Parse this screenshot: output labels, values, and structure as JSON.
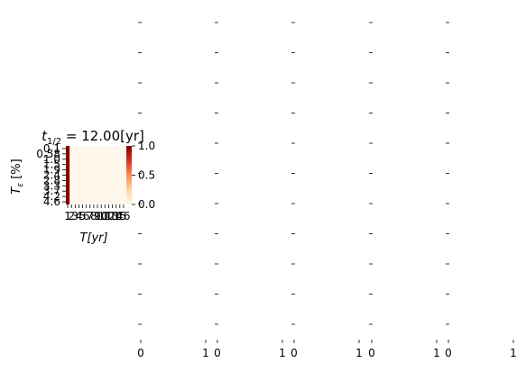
{
  "chart_data": [
    {
      "type": "heatmap",
      "title_symbol": "t",
      "title_subscript": "1/2",
      "title_rest": " = 12.00[yr]",
      "xlabel": "T[yr]",
      "ylabel_symbol": "T",
      "ylabel_subscript": "ε",
      "ylabel_rest": " [%]",
      "x_tick_labels": [
        "1",
        "2",
        "3",
        "4",
        "5",
        "6",
        "7",
        "8",
        "9",
        "10",
        "11",
        "12",
        "13",
        "14",
        "15",
        "16"
      ],
      "y_tick_labels": [
        "0.1",
        "0.58",
        "1.0",
        "1.5",
        "1.9",
        "2.4",
        "2.8",
        "3.3",
        "3.7",
        "4.2",
        "4.6"
      ],
      "grid": false,
      "colormap": "OrRd",
      "colorbar": {
        "ticks": [
          "0.0",
          "0.5",
          "1.0"
        ],
        "range": [
          0,
          1
        ]
      },
      "column_values": [
        1,
        0,
        0,
        0,
        0,
        0,
        0,
        0,
        0,
        0,
        0,
        0,
        0,
        0,
        0,
        0
      ],
      "colors": {
        "high": "#7f0000",
        "low": "#fff7ec",
        "mid": "#fc8d59"
      }
    },
    {
      "type": "heatmap",
      "empty_panel_count": 5,
      "x_tick_labels": [
        "0",
        "1"
      ],
      "y_tick_count": 11
    }
  ]
}
